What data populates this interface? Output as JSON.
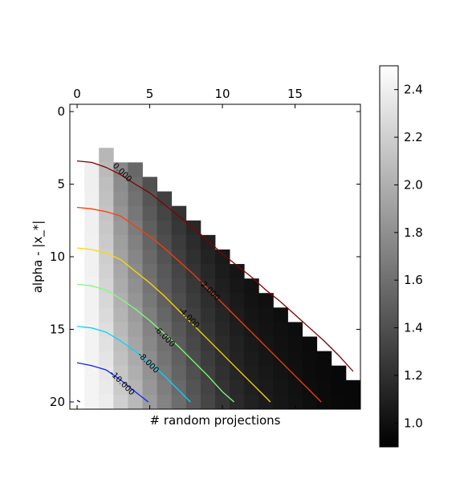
{
  "chart_data": {
    "type": "heatmap",
    "title": "",
    "xlabel": "# random projections",
    "ylabel": "alpha - |x_*|",
    "x_ticks": [
      0,
      5,
      10,
      15
    ],
    "y_ticks": [
      0,
      5,
      10,
      15,
      20
    ],
    "xlim": [
      -0.5,
      19.5
    ],
    "ylim": [
      20.5,
      -0.5
    ],
    "x_ticks_position": "top",
    "colormap": "gray",
    "colorbar": {
      "ticks": [
        1.0,
        1.2,
        1.4,
        1.6,
        1.8,
        2.0,
        2.2,
        2.4
      ],
      "tick_labels": [
        "1.0",
        "1.2",
        "1.4",
        "1.6",
        "1.8",
        "2.0",
        "2.2",
        "2.4"
      ],
      "range": [
        0.9,
        2.5
      ],
      "position": "right"
    },
    "grid": {
      "rows": 21,
      "cols": 20,
      "empty_value": null,
      "first_valid_row_per_col": [
        21,
        4,
        3,
        4,
        4,
        5,
        6,
        7,
        8,
        9,
        10,
        11,
        12,
        13,
        14,
        15,
        16,
        17,
        18,
        19
      ],
      "column_bases": [
        0,
        2.4,
        2.05,
        1.75,
        1.55,
        1.4,
        1.3,
        1.22,
        1.15,
        1.1,
        1.06,
        1.03,
        1.01,
        1.0,
        0.99,
        0.98,
        0.97,
        0.96,
        0.95,
        0.95
      ],
      "column_ramps": [
        0,
        0.002,
        0.02,
        0.028,
        0.032,
        0.032,
        0.03,
        0.028,
        0.025,
        0.022,
        0.018,
        0.015,
        0.012,
        0.01,
        0.008,
        0.006,
        0.004,
        0.003,
        0.003,
        0.002
      ]
    },
    "contours": [
      {
        "level": 0.0,
        "label": "0.000",
        "color": "#800000",
        "points": [
          [
            0,
            3.4
          ],
          [
            1.0,
            3.5
          ],
          [
            2.0,
            3.85
          ],
          [
            3.0,
            4.35
          ],
          [
            4.0,
            5.0
          ],
          [
            5.0,
            5.6
          ],
          [
            6.0,
            6.4
          ],
          [
            7.0,
            7.2
          ],
          [
            8.0,
            8.0
          ],
          [
            9.0,
            8.9
          ],
          [
            10.0,
            9.8
          ],
          [
            11.0,
            10.6
          ],
          [
            12.0,
            11.4
          ],
          [
            13.0,
            12.3
          ],
          [
            14.0,
            13.1
          ],
          [
            15.0,
            14.0
          ],
          [
            16.0,
            14.9
          ],
          [
            17.0,
            15.8
          ],
          [
            18.0,
            16.8
          ],
          [
            19.0,
            17.9
          ]
        ],
        "label_at": [
          3.1,
          4.2
        ]
      },
      {
        "level": -2.0,
        "label": "-2.000",
        "color": "#ff3c00",
        "points": [
          [
            0,
            6.6
          ],
          [
            1.0,
            6.7
          ],
          [
            2.0,
            6.9
          ],
          [
            3.0,
            7.2
          ],
          [
            4.0,
            7.9
          ],
          [
            5.0,
            8.6
          ],
          [
            6.0,
            9.4
          ],
          [
            7.0,
            10.3
          ],
          [
            8.0,
            11.2
          ],
          [
            9.0,
            12.2
          ],
          [
            10.0,
            13.2
          ],
          [
            11.0,
            14.2
          ],
          [
            12.0,
            15.2
          ],
          [
            13.0,
            16.2
          ],
          [
            14.0,
            17.2
          ],
          [
            15.0,
            18.2
          ],
          [
            16.0,
            19.2
          ],
          [
            16.8,
            20.0
          ]
        ],
        "label_at": [
          9.1,
          12.3
        ]
      },
      {
        "level": -4.0,
        "label": "-4.000",
        "color": "#ffd800",
        "points": [
          [
            0,
            9.4
          ],
          [
            1.0,
            9.5
          ],
          [
            2.0,
            9.75
          ],
          [
            3.0,
            10.2
          ],
          [
            4.0,
            11.0
          ],
          [
            5.0,
            11.8
          ],
          [
            6.0,
            12.7
          ],
          [
            7.0,
            13.7
          ],
          [
            8.0,
            14.7
          ],
          [
            9.0,
            15.7
          ],
          [
            10.0,
            16.7
          ],
          [
            11.0,
            17.7
          ],
          [
            12.0,
            18.7
          ],
          [
            13.0,
            19.7
          ],
          [
            13.3,
            20.0
          ]
        ],
        "label_at": [
          7.7,
          14.2
        ]
      },
      {
        "level": -6.0,
        "label": "-6.000",
        "color": "#7dff7a",
        "points": [
          [
            0,
            11.9
          ],
          [
            1.0,
            12.0
          ],
          [
            2.0,
            12.3
          ],
          [
            3.0,
            12.9
          ],
          [
            4.0,
            13.6
          ],
          [
            5.0,
            14.4
          ],
          [
            6.0,
            15.3
          ],
          [
            7.0,
            16.2
          ],
          [
            8.0,
            17.2
          ],
          [
            9.0,
            18.2
          ],
          [
            10.0,
            19.3
          ],
          [
            10.8,
            20.0
          ]
        ],
        "label_at": [
          6.0,
          15.5
        ]
      },
      {
        "level": -8.0,
        "label": "-8.000",
        "color": "#00d4ff",
        "points": [
          [
            0,
            14.8
          ],
          [
            1.0,
            14.9
          ],
          [
            2.0,
            15.2
          ],
          [
            3.0,
            15.8
          ],
          [
            4.0,
            16.5
          ],
          [
            5.0,
            17.3
          ],
          [
            6.0,
            18.2
          ],
          [
            7.0,
            19.2
          ],
          [
            7.8,
            20.0
          ]
        ],
        "label_at": [
          4.9,
          17.3
        ]
      },
      {
        "level": -10.0,
        "label": "-10.000",
        "color": "#0a22ff",
        "points": [
          [
            0,
            17.3
          ],
          [
            1.0,
            17.5
          ],
          [
            2.0,
            17.8
          ],
          [
            3.0,
            18.5
          ],
          [
            4.0,
            19.3
          ],
          [
            4.9,
            20.0
          ]
        ],
        "label_at": [
          3.1,
          18.7
        ]
      },
      {
        "level": -12.0,
        "label": "",
        "color": "#000080",
        "points": [
          [
            0,
            19.9
          ],
          [
            0.2,
            20.0
          ]
        ],
        "label_at": null
      }
    ]
  }
}
